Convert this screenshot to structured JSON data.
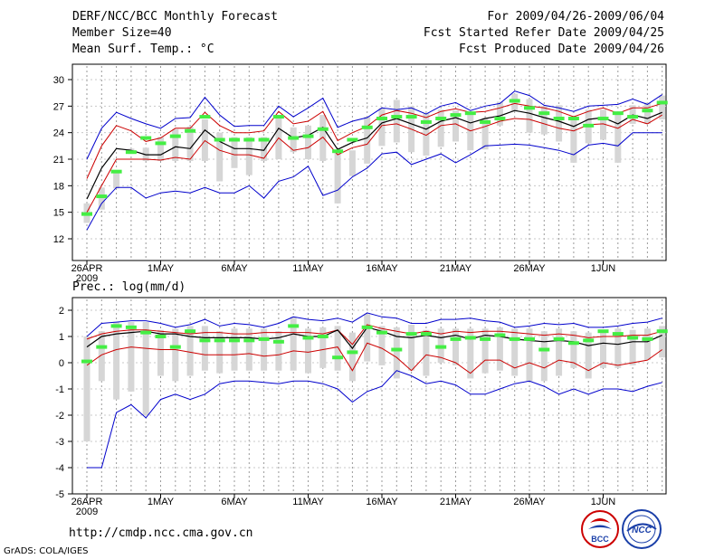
{
  "header": {
    "title": "DERF/NCC/BCC Monthly Forecast",
    "member_size": "Member Size=40",
    "variable": "Mean Surf. Temp.: °C",
    "period": "For 2009/04/26-2009/06/04",
    "start_ref": "Fcst Started Refer Date 2009/04/25",
    "produced": "Fcst Produced Date 2009/04/26"
  },
  "footer": {
    "url": "http://cmdp.ncc.cma.gov.cn",
    "credit": "GrADS: COLA/IGES",
    "logo_bcc": "BCC",
    "logo_ncc": "NCC"
  },
  "colors": {
    "envelope": "#0000cc",
    "spread": "#cc0000",
    "mean": "#000000",
    "observed": "#44ee44",
    "bars": "#d6d6d6"
  },
  "chart_data": [
    {
      "type": "line",
      "title": "Mean Surf. Temp.: °C",
      "ylabel": "°C",
      "ylim": [
        10,
        32
      ],
      "yticks": [
        12,
        15,
        18,
        21,
        24,
        27,
        30
      ],
      "x_tick_labels": [
        [
          "26APR",
          "2009"
        ],
        [
          "1MAY"
        ],
        [
          "6MAY"
        ],
        [
          "11MAY"
        ],
        [
          "16MAY"
        ],
        [
          "21MAY"
        ],
        [
          "26MAY"
        ],
        [
          "1JUN"
        ]
      ],
      "x_tick_days": [
        1,
        6,
        11,
        16,
        21,
        26,
        31,
        36
      ],
      "days": 40,
      "observed": [
        14.8,
        16.8,
        19.6,
        21.8,
        23.4,
        22.8,
        23.6,
        24.2,
        25.8,
        23.2,
        23.2,
        23.2,
        23.2,
        25.8,
        23.4,
        23.6,
        24.4,
        21.9,
        23.2,
        24.6,
        25.6,
        25.8,
        25.8,
        25.2,
        25.6,
        26.0,
        26.2,
        25.2,
        25.6,
        27.6,
        26.8,
        26.2,
        25.6,
        25.6,
        24.8,
        25.6,
        26.2,
        25.8,
        26.5,
        27.4
      ],
      "ensemble_mean": [
        16.5,
        20.0,
        22.2,
        22.0,
        21.5,
        21.5,
        22.4,
        22.2,
        24.3,
        23.0,
        22.2,
        22.2,
        22.0,
        24.5,
        23.4,
        23.7,
        24.6,
        22.1,
        22.9,
        23.4,
        25.1,
        25.6,
        25.0,
        24.4,
        25.3,
        25.7,
        25.1,
        25.6,
        25.9,
        26.5,
        26.2,
        25.7,
        25.3,
        24.7,
        25.5,
        25.7,
        25.0,
        26.0,
        25.6,
        26.3
      ],
      "spread_upper": [
        18.8,
        22.5,
        24.8,
        24.2,
        23.0,
        23.4,
        24.5,
        24.5,
        26.3,
        24.8,
        24.0,
        24.0,
        24.2,
        26.4,
        25.0,
        25.3,
        26.4,
        23.1,
        24.0,
        24.7,
        26.0,
        26.5,
        26.2,
        25.7,
        26.4,
        26.7,
        26.3,
        26.4,
        26.8,
        27.3,
        27.0,
        26.8,
        26.4,
        25.8,
        26.4,
        26.8,
        26.2,
        26.8,
        26.8,
        27.3
      ],
      "spread_lower": [
        15.0,
        18.0,
        21.0,
        21.0,
        21.0,
        20.9,
        21.2,
        21.0,
        23.1,
        22.0,
        21.5,
        21.5,
        21.1,
        23.4,
        22.0,
        22.3,
        23.5,
        21.5,
        22.3,
        22.7,
        24.8,
        25.0,
        24.4,
        23.7,
        24.8,
        25.0,
        24.2,
        24.7,
        25.3,
        25.6,
        25.5,
        25.0,
        24.5,
        24.2,
        24.9,
        25.0,
        24.5,
        25.5,
        25.0,
        26.0
      ],
      "envelope_upper": [
        21.0,
        24.5,
        26.3,
        25.6,
        25.0,
        24.5,
        25.6,
        25.7,
        28.0,
        26.0,
        24.7,
        24.8,
        24.8,
        27.0,
        25.8,
        26.8,
        27.9,
        24.6,
        25.3,
        25.7,
        26.8,
        26.6,
        26.8,
        26.1,
        27.0,
        27.4,
        26.5,
        27.0,
        27.3,
        28.7,
        28.2,
        27.1,
        26.8,
        26.4,
        27.0,
        27.1,
        27.2,
        27.8,
        27.2,
        28.3
      ],
      "envelope_lower": [
        13.0,
        16.0,
        17.8,
        17.8,
        16.6,
        17.2,
        17.4,
        17.2,
        17.8,
        17.2,
        17.2,
        18.0,
        16.6,
        18.5,
        19.0,
        20.2,
        16.9,
        17.5,
        19.0,
        20.0,
        21.6,
        21.8,
        20.4,
        21.0,
        21.6,
        20.6,
        21.5,
        22.5,
        22.6,
        22.7,
        22.6,
        22.3,
        22.0,
        21.5,
        22.6,
        22.8,
        22.5,
        24.0,
        24.0,
        24.0
      ],
      "bar_top": [
        16.0,
        17.8,
        19.5,
        22.2,
        22.3,
        23.5,
        24.4,
        24.7,
        25.5,
        24.0,
        23.5,
        23.5,
        23.5,
        26.0,
        24.6,
        24.8,
        26.0,
        21.8,
        22.0,
        25.8,
        26.8,
        27.7,
        27.0,
        26.2,
        26.6,
        26.5,
        26.4,
        25.7,
        27.5,
        28.4,
        27.8,
        27.0,
        27.1,
        25.8,
        26.6,
        26.6,
        26.4,
        27.1,
        27.4,
        28.2
      ],
      "bar_bottom": [
        13.8,
        15.3,
        17.7,
        21.6,
        20.8,
        20.8,
        20.8,
        20.8,
        20.8,
        18.5,
        20.0,
        19.2,
        20.8,
        21.0,
        21.8,
        21.0,
        20.8,
        16.0,
        19.1,
        20.5,
        22.5,
        22.9,
        21.8,
        21.4,
        22.4,
        23.0,
        22.0,
        22.1,
        24.8,
        26.4,
        24.0,
        23.8,
        23.0,
        20.6,
        22.8,
        23.2,
        20.6,
        25.0,
        25.0,
        25.5
      ]
    },
    {
      "type": "line",
      "title": "Prec.: log(mm/d)",
      "ylabel": "log(mm/d)",
      "ylim": [
        -5,
        2.2
      ],
      "yticks": [
        2,
        1,
        0,
        -1,
        -2,
        -3,
        -4,
        -5
      ],
      "x_tick_labels": [
        [
          "26APR",
          "2009"
        ],
        [
          "1MAY"
        ],
        [
          "6MAY"
        ],
        [
          "11MAY"
        ],
        [
          "16MAY"
        ],
        [
          "21MAY"
        ],
        [
          "26MAY"
        ],
        [
          "1JUN"
        ]
      ],
      "x_tick_days": [
        1,
        6,
        11,
        16,
        21,
        26,
        31,
        36
      ],
      "days": 40,
      "observed": [
        0.05,
        0.6,
        1.4,
        1.35,
        1.15,
        1.0,
        0.6,
        1.2,
        0.85,
        0.85,
        0.85,
        0.85,
        0.9,
        0.8,
        1.4,
        0.95,
        1.0,
        0.2,
        0.4,
        1.35,
        1.15,
        0.5,
        1.1,
        1.1,
        0.6,
        0.9,
        0.95,
        0.9,
        1.05,
        0.9,
        0.9,
        0.5,
        0.9,
        0.75,
        0.85,
        1.2,
        1.1,
        0.95,
        0.9,
        1.2
      ],
      "ensemble_mean": [
        0.6,
        1.0,
        1.1,
        1.15,
        1.2,
        1.1,
        1.1,
        1.0,
        0.95,
        0.95,
        0.95,
        0.95,
        0.9,
        0.95,
        1.1,
        1.0,
        1.0,
        1.25,
        0.55,
        1.35,
        1.2,
        1.0,
        0.95,
        1.05,
        0.95,
        1.05,
        0.9,
        1.05,
        1.0,
        0.9,
        0.85,
        0.8,
        0.85,
        0.8,
        0.65,
        0.75,
        0.7,
        0.8,
        0.8,
        1.05
      ],
      "spread_upper": [
        0.9,
        1.1,
        1.2,
        1.25,
        1.25,
        1.2,
        1.15,
        1.1,
        1.15,
        1.15,
        1.1,
        1.1,
        1.15,
        1.15,
        1.15,
        1.15,
        1.1,
        1.25,
        0.7,
        1.45,
        1.3,
        1.2,
        1.1,
        1.2,
        1.1,
        1.2,
        1.15,
        1.2,
        1.2,
        1.15,
        1.1,
        1.05,
        1.1,
        1.05,
        0.95,
        1.0,
        1.0,
        1.05,
        1.05,
        1.2
      ],
      "spread_lower": [
        -0.1,
        0.3,
        0.5,
        0.6,
        0.55,
        0.5,
        0.5,
        0.4,
        0.3,
        0.3,
        0.3,
        0.35,
        0.25,
        0.3,
        0.45,
        0.4,
        0.5,
        0.6,
        -0.3,
        0.75,
        0.55,
        0.2,
        -0.3,
        0.3,
        0.2,
        0.0,
        -0.4,
        0.1,
        0.1,
        -0.2,
        0.0,
        -0.2,
        0.1,
        0.0,
        -0.3,
        0.0,
        -0.1,
        0.0,
        0.1,
        0.5
      ],
      "envelope_upper": [
        1.0,
        1.5,
        1.55,
        1.6,
        1.6,
        1.5,
        1.35,
        1.45,
        1.65,
        1.4,
        1.5,
        1.45,
        1.35,
        1.5,
        1.75,
        1.65,
        1.6,
        1.7,
        1.55,
        1.9,
        1.75,
        1.7,
        1.5,
        1.5,
        1.65,
        1.65,
        1.7,
        1.6,
        1.55,
        1.35,
        1.4,
        1.5,
        1.45,
        1.5,
        1.35,
        1.35,
        1.4,
        1.5,
        1.55,
        1.7
      ],
      "envelope_lower": [
        -4.0,
        -4.0,
        -1.9,
        -1.6,
        -2.1,
        -1.4,
        -1.2,
        -1.4,
        -1.2,
        -0.8,
        -0.7,
        -0.7,
        -0.75,
        -0.8,
        -0.7,
        -0.7,
        -0.8,
        -1.0,
        -1.5,
        -1.1,
        -0.9,
        -0.3,
        -0.5,
        -0.8,
        -0.7,
        -0.85,
        -1.2,
        -1.2,
        -1.0,
        -0.8,
        -0.7,
        -0.9,
        -1.2,
        -1.0,
        -1.2,
        -1.0,
        -1.0,
        -1.1,
        -0.9,
        -0.75
      ],
      "bar_top": [
        1.0,
        1.2,
        1.55,
        1.55,
        1.55,
        1.25,
        1.3,
        1.4,
        1.4,
        1.2,
        1.3,
        1.3,
        1.3,
        1.2,
        1.75,
        1.3,
        1.35,
        1.4,
        1.15,
        1.85,
        1.4,
        1.35,
        1.45,
        1.25,
        1.3,
        1.3,
        1.3,
        1.3,
        1.35,
        1.3,
        1.3,
        1.2,
        1.3,
        1.2,
        1.15,
        1.25,
        1.3,
        1.25,
        1.3,
        1.4
      ],
      "bar_bottom": [
        -3.0,
        -0.7,
        -1.4,
        -1.1,
        -2.0,
        -0.5,
        -0.7,
        -0.5,
        -0.3,
        -0.4,
        -0.3,
        -0.3,
        -0.3,
        -0.3,
        -0.3,
        -0.4,
        -0.2,
        -0.3,
        -0.7,
        0.05,
        -0.1,
        -0.6,
        -0.3,
        -0.5,
        0.0,
        -0.1,
        -0.6,
        -0.4,
        -0.3,
        -0.5,
        -0.7,
        -0.7,
        -0.5,
        -0.2,
        -0.6,
        -0.2,
        -0.2,
        -0.1,
        0.1,
        0.2
      ]
    }
  ]
}
